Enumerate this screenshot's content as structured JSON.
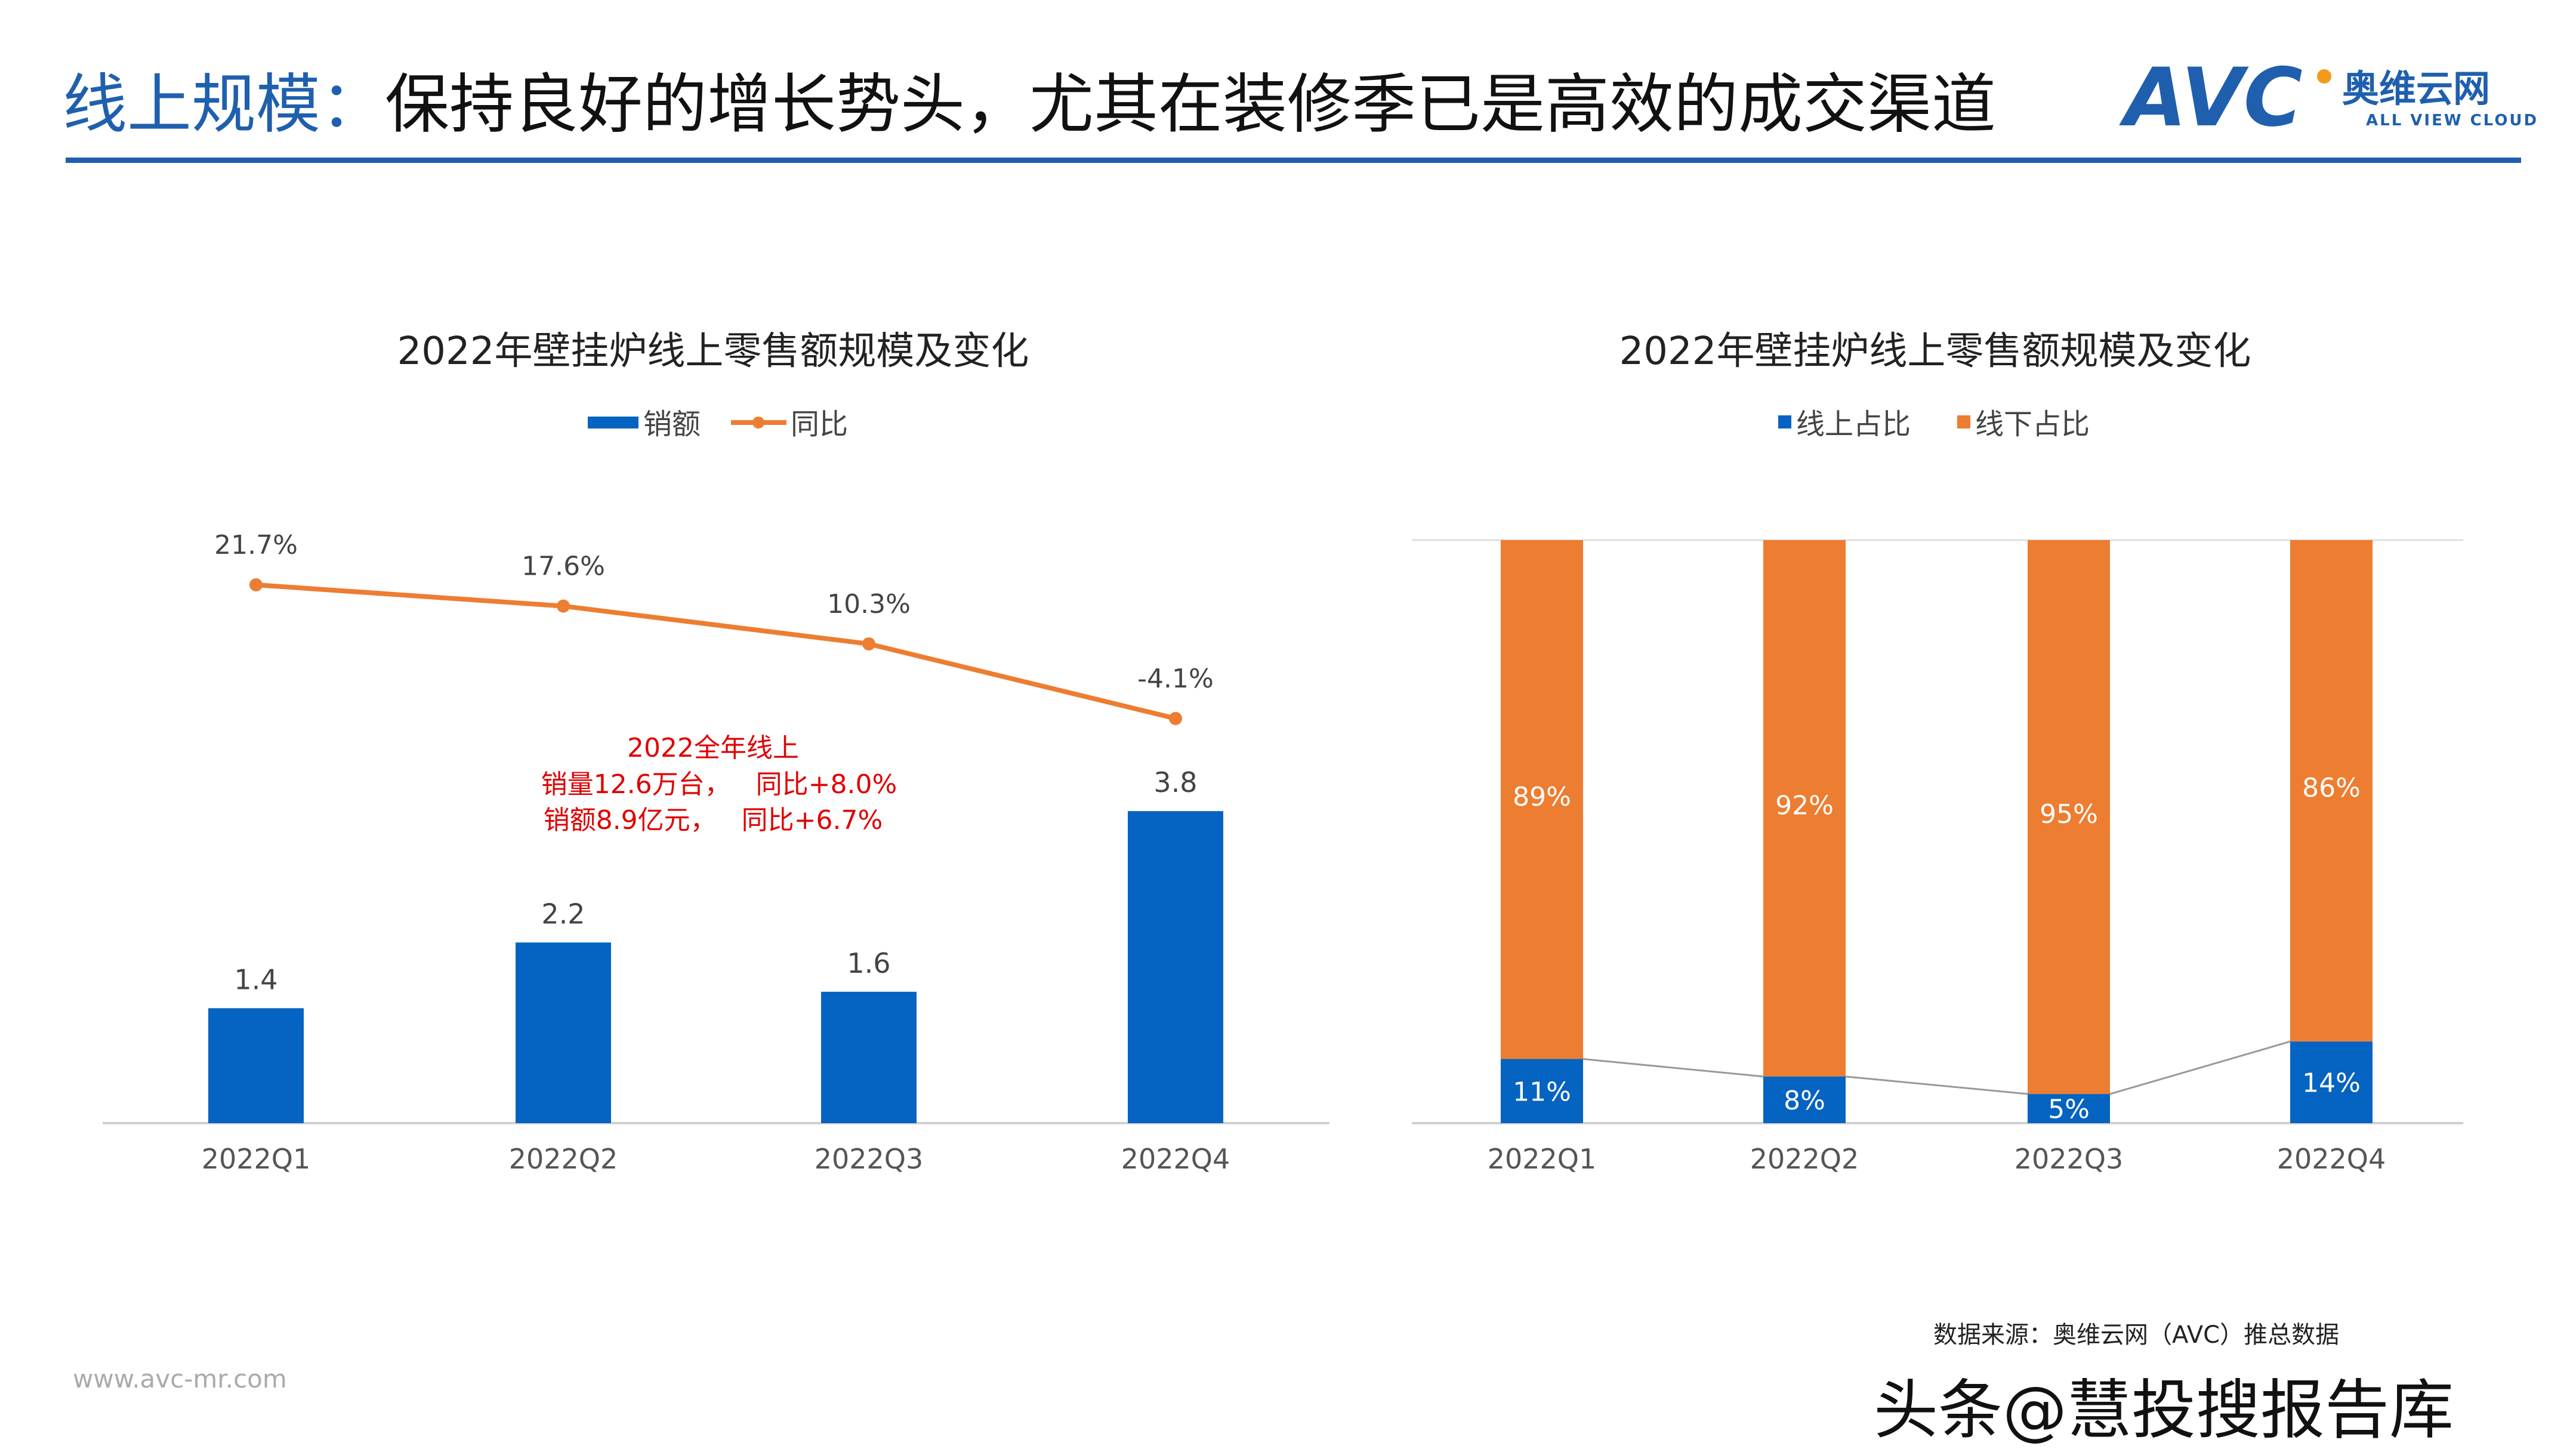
{
  "header": {
    "title_prefix": "线上规模：",
    "title_main": "保持良好的增长势头，尤其在装修季已是高效的成交渠道",
    "logo_text": "AVC",
    "logo_cn": "奥维云网",
    "logo_en": "ALL VIEW CLOUD"
  },
  "colors": {
    "brand_blue": "#1f5fae",
    "bar_blue": "#0563c1",
    "orange": "#ed7d31",
    "annotation_red": "#e00000"
  },
  "chart_data": [
    {
      "type": "bar+line",
      "title": "2022年壁挂炉线上零售额规模及变化",
      "categories": [
        "2022Q1",
        "2022Q2",
        "2022Q3",
        "2022Q4"
      ],
      "series": [
        {
          "name": "销额",
          "type": "bar",
          "values": [
            1.4,
            2.2,
            1.6,
            3.8
          ],
          "labels": [
            "1.4",
            "2.2",
            "1.6",
            "3.8"
          ]
        },
        {
          "name": "同比",
          "type": "line",
          "values": [
            21.7,
            17.6,
            10.3,
            -4.1
          ],
          "labels": [
            "21.7%",
            "17.6%",
            "10.3%",
            "-4.1%"
          ]
        }
      ],
      "legend_position": "top",
      "annotation": [
        "2022全年线上",
        "销量12.6万台，   同比+8.0%",
        "销额8.9亿元，   同比+6.7%"
      ]
    },
    {
      "type": "stacked-bar-100",
      "title": "2022年壁挂炉线上零售额规模及变化",
      "categories": [
        "2022Q1",
        "2022Q2",
        "2022Q3",
        "2022Q4"
      ],
      "series": [
        {
          "name": "线上占比",
          "values": [
            11,
            8,
            5,
            14
          ],
          "labels": [
            "11%",
            "8%",
            "5%",
            "14%"
          ]
        },
        {
          "name": "线下占比",
          "values": [
            89,
            92,
            95,
            86
          ],
          "labels": [
            "89%",
            "92%",
            "95%",
            "86%"
          ]
        }
      ],
      "legend_position": "top"
    }
  ],
  "footer": {
    "website": "www.avc-mr.com",
    "source": "数据来源：奥维云网（AVC）推总数据",
    "watermark": "头条@慧投搜报告库"
  }
}
